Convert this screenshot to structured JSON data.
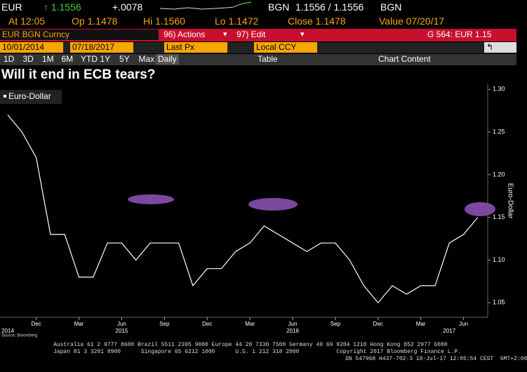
{
  "terminal": {
    "quote": {
      "ticker": "EUR",
      "last": "↑ 1.1556",
      "change": "+.0078",
      "currency": "BGN",
      "bid_ask": "1.1556 / 1.1556",
      "currency2": "BGN"
    },
    "stats": [
      "At 12:05",
      "Op 1.1478",
      "Hi 1.1560",
      "Lo 1.1472",
      "Close 1.1478",
      "Value 07/20/17"
    ],
    "security": "EUR BGN Curncy",
    "actions": "96) Actions",
    "edit": "97) Edit",
    "page": "G 564: EUR 1.15",
    "start_date": "10/01/2014",
    "end_date": "07/18/2017",
    "field": "Last Px",
    "currency_mode": "Local CCY",
    "periods": [
      "1D",
      "3D",
      "1M",
      "6M",
      "YTD",
      "1Y",
      "5Y",
      "Max"
    ],
    "frequency": "Daily",
    "table": "Table",
    "chart_content": "Chart Content"
  },
  "chart_data": {
    "type": "line",
    "title": "Will it end in ECB tears?",
    "y_label": "Euro-Dollar",
    "source": "Source: Bloomberg",
    "x": [
      "2014-10",
      "2014-11",
      "2014-12",
      "2015-01",
      "2015-02",
      "2015-03",
      "2015-04",
      "2015-05",
      "2015-06",
      "2015-07",
      "2015-08",
      "2015-09",
      "2015-10",
      "2015-11",
      "2015-12",
      "2016-01",
      "2016-02",
      "2016-03",
      "2016-04",
      "2016-05",
      "2016-06",
      "2016-07",
      "2016-08",
      "2016-09",
      "2016-10",
      "2016-11",
      "2016-12",
      "2017-01",
      "2017-02",
      "2017-03",
      "2017-04",
      "2017-05",
      "2017-06",
      "2017-07"
    ],
    "series": [
      {
        "name": "Euro-Dollar",
        "color": "#ffffff",
        "values": [
          1.27,
          1.25,
          1.22,
          1.13,
          1.13,
          1.08,
          1.08,
          1.12,
          1.12,
          1.1,
          1.12,
          1.12,
          1.12,
          1.07,
          1.09,
          1.09,
          1.11,
          1.12,
          1.14,
          1.13,
          1.12,
          1.11,
          1.12,
          1.12,
          1.1,
          1.07,
          1.05,
          1.07,
          1.06,
          1.07,
          1.07,
          1.12,
          1.13,
          1.15
        ]
      }
    ],
    "ylim": [
      1.033,
      1.306
    ],
    "yticks": [
      {
        "value": 1.05,
        "label": "1.05"
      },
      {
        "value": 1.1,
        "label": "1.10"
      },
      {
        "value": 1.15,
        "label": "1.15"
      },
      {
        "value": 1.2,
        "label": "1.20"
      },
      {
        "value": 1.25,
        "label": "1.25"
      },
      {
        "value": 1.3,
        "label": "1.30"
      }
    ],
    "xticks": [
      {
        "value": "2014-12",
        "label": "Dec"
      },
      {
        "value": "2015-03",
        "label": "Mar"
      },
      {
        "value": "2015-06",
        "label": "Jun"
      },
      {
        "value": "2015-09",
        "label": "Sep"
      },
      {
        "value": "2015-12",
        "label": "Dec"
      },
      {
        "value": "2016-03",
        "label": "Mar"
      },
      {
        "value": "2016-06",
        "label": "Jun"
      },
      {
        "value": "2016-09",
        "label": "Sep"
      },
      {
        "value": "2016-12",
        "label": "Dec"
      },
      {
        "value": "2017-03",
        "label": "Mar"
      },
      {
        "value": "2017-06",
        "label": "Jun"
      }
    ],
    "year_labels": [
      {
        "value": "2014-10",
        "label": "2014"
      },
      {
        "value": "2015-06",
        "label": "2015"
      },
      {
        "value": "2016-06",
        "label": "2016"
      },
      {
        "value": "2017-05",
        "label": "2017"
      }
    ],
    "grid": false
  },
  "footer": [
    "Australia 61 2 9777 8600 Brazil 5511 2395 9000 Europe 44 20 7330 7500 Germany 49 69 9204 1210 Hong Kong 852 2977 6000",
    "Japan 81 3 3201 8900      Singapore 65 6212 1000      U.S. 1 212 318 2000           Copyright 2017 Bloomberg Finance L.P.",
    "SN 547968 H437-702-3 18-Jul-17 12:05:54 CEST  GMT+2:00"
  ]
}
